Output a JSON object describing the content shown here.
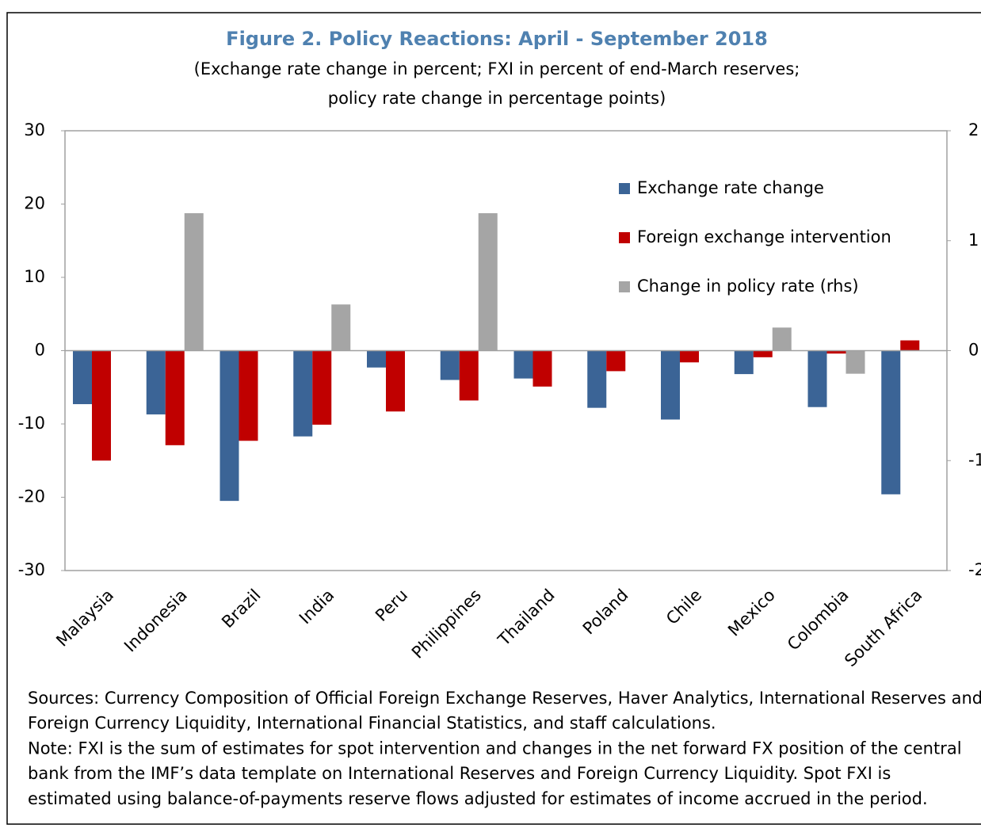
{
  "chart_data": {
    "type": "bar",
    "title": "Figure 2. Policy Reactions: April - September 2018",
    "subtitle": [
      "(Exchange rate change in percent; FXI in percent of end-March reserves;",
      "policy rate change in percentage points)"
    ],
    "categories": [
      "Malaysia",
      "Indonesia",
      "Brazil",
      "India",
      "Peru",
      "Philippines",
      "Thailand",
      "Poland",
      "Chile",
      "Mexico",
      "Colombia",
      "South Africa"
    ],
    "series": [
      {
        "name": "Exchange rate change",
        "color": "#3b6496",
        "values": [
          -7.3,
          -8.7,
          -20.5,
          -11.7,
          -2.3,
          -4.0,
          -3.8,
          -7.8,
          -9.4,
          -3.2,
          -7.7,
          -19.6
        ]
      },
      {
        "name": "Foreign exchange intervention",
        "color": "#c00000",
        "values": [
          -15.0,
          -12.9,
          -12.3,
          -10.1,
          -8.3,
          -6.8,
          -4.9,
          -2.8,
          -1.6,
          -0.9,
          -0.4,
          1.4
        ]
      },
      {
        "name": "Change in policy rate (rhs)",
        "color": "#a5a5a5",
        "axis": "y2",
        "values": [
          0,
          1.25,
          0,
          0.42,
          0,
          1.25,
          0,
          0,
          0,
          0.21,
          -0.21,
          0
        ]
      }
    ],
    "ylim": [
      -30,
      30
    ],
    "yticks": [
      -30,
      -20,
      -10,
      0,
      10,
      20,
      30
    ],
    "y2lim": [
      -2,
      2
    ],
    "y2ticks": [
      -2,
      -1,
      0,
      1,
      2
    ],
    "legend": "upper right",
    "notes": [
      "Sources: Currency Composition of Official Foreign Exchange Reserves, Haver Analytics, International Reserves and",
      "Foreign Currency Liquidity, International Financial Statistics, and staff calculations.",
      "Note: FXI is the sum of estimates for spot intervention and changes in the net forward FX position of the central",
      "bank from the IMF’s data template on International Reserves and Foreign Currency Liquidity. Spot FXI is",
      "estimated using balance-of-payments reserve flows adjusted for estimates of income accrued in the period."
    ]
  }
}
